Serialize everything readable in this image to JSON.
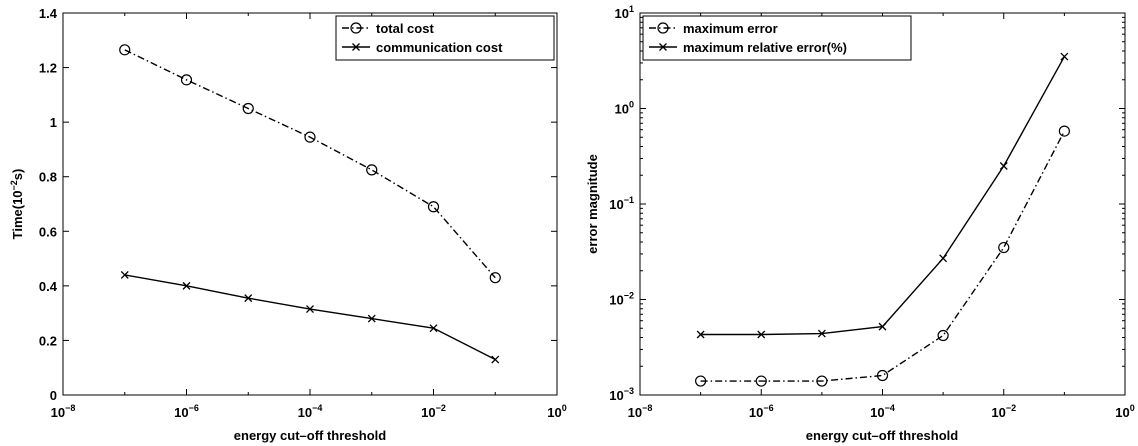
{
  "chart_data": [
    {
      "type": "line",
      "xscale": "log",
      "xlim_exponents": [
        -8,
        0
      ],
      "ylim": [
        0,
        1.4
      ],
      "xlabel": "energy cut–off threshold",
      "ylabel_main": "Time(10",
      "ylabel_sup": "−2",
      "ylabel_tail": "s)",
      "yticks": [
        "0",
        "0.2",
        "0.4",
        "0.6",
        "0.8",
        "1",
        "1.2",
        "1.4"
      ],
      "xticks": [
        {
          "base": "10",
          "exp": "−8"
        },
        {
          "base": "10",
          "exp": "−6"
        },
        {
          "base": "10",
          "exp": "−4"
        },
        {
          "base": "10",
          "exp": "−2"
        },
        {
          "base": "10",
          "exp": "0"
        }
      ],
      "x": [
        1e-07,
        1e-06,
        1e-05,
        0.0001,
        0.001,
        0.01,
        0.1
      ],
      "series": [
        {
          "name": "total cost",
          "marker": "circle",
          "linestyle": "dashdot",
          "values": [
            1.265,
            1.155,
            1.05,
            0.945,
            0.825,
            0.69,
            0.43
          ]
        },
        {
          "name": "communication cost",
          "marker": "x",
          "linestyle": "solid",
          "values": [
            0.44,
            0.4,
            0.355,
            0.315,
            0.28,
            0.245,
            0.13
          ]
        }
      ],
      "legend_position": "top-right"
    },
    {
      "type": "line",
      "xscale": "log",
      "yscale": "log",
      "xlim_exponents": [
        -8,
        0
      ],
      "ylim_exponents": [
        -3,
        1
      ],
      "xlabel": "energy cut–off threshold",
      "ylabel": "error magnitude",
      "yticks": [
        {
          "base": "10",
          "exp": "−3"
        },
        {
          "base": "10",
          "exp": "−2"
        },
        {
          "base": "10",
          "exp": "−1"
        },
        {
          "base": "10",
          "exp": "0"
        },
        {
          "base": "10",
          "exp": "1"
        }
      ],
      "xticks": [
        {
          "base": "10",
          "exp": "−8"
        },
        {
          "base": "10",
          "exp": "−6"
        },
        {
          "base": "10",
          "exp": "−4"
        },
        {
          "base": "10",
          "exp": "−2"
        },
        {
          "base": "10",
          "exp": "0"
        }
      ],
      "x": [
        1e-07,
        1e-06,
        1e-05,
        0.0001,
        0.001,
        0.01,
        0.1
      ],
      "series": [
        {
          "name": "maximum error",
          "marker": "circle",
          "linestyle": "dashdot",
          "values": [
            0.0014,
            0.0014,
            0.0014,
            0.0016,
            0.0042,
            0.035,
            0.58
          ]
        },
        {
          "name": "maximum relative error(%)",
          "marker": "x",
          "linestyle": "solid",
          "values": [
            0.0043,
            0.0043,
            0.0044,
            0.0052,
            0.027,
            0.25,
            3.5
          ]
        }
      ],
      "legend_position": "top-left"
    }
  ]
}
